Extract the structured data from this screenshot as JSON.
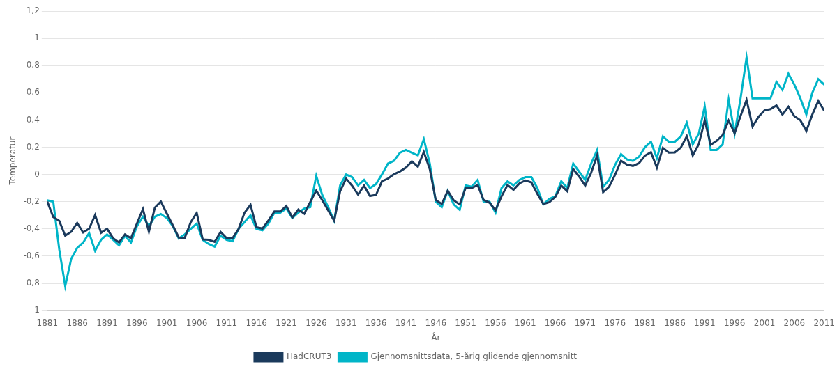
{
  "chart_data": {
    "type": "line",
    "xlabel": "År",
    "ylabel": "Temperatur",
    "xlim": [
      1881,
      2011
    ],
    "ylim": [
      -1.0,
      1.2
    ],
    "xticks": [
      1881,
      1886,
      1891,
      1896,
      1901,
      1906,
      1911,
      1916,
      1921,
      1926,
      1931,
      1936,
      1941,
      1946,
      1951,
      1956,
      1961,
      1966,
      1971,
      1976,
      1981,
      1986,
      1991,
      1996,
      2001,
      2006,
      2011
    ],
    "yticks": [
      -1,
      {
        "value": -0.8,
        "label": "-0,8"
      },
      {
        "value": -0.6,
        "label": "-0,6"
      },
      {
        "value": -0.4,
        "label": "-0,4"
      },
      {
        "value": -0.2,
        "label": "-0,2"
      },
      0,
      {
        "value": 0.2,
        "label": "0,2"
      },
      {
        "value": 0.4,
        "label": "0,4"
      },
      {
        "value": 0.6,
        "label": "0,6"
      },
      {
        "value": 0.8,
        "label": "0,8"
      },
      1,
      {
        "value": 1.2,
        "label": "1,2"
      }
    ],
    "grid": "y",
    "legend": "bottom",
    "x": [
      1881,
      1882,
      1883,
      1884,
      1885,
      1886,
      1887,
      1888,
      1889,
      1890,
      1891,
      1892,
      1893,
      1894,
      1895,
      1896,
      1897,
      1898,
      1899,
      1900,
      1901,
      1902,
      1903,
      1904,
      1905,
      1906,
      1907,
      1908,
      1909,
      1910,
      1911,
      1912,
      1913,
      1914,
      1915,
      1916,
      1917,
      1918,
      1919,
      1920,
      1921,
      1922,
      1923,
      1924,
      1925,
      1926,
      1927,
      1928,
      1929,
      1930,
      1931,
      1932,
      1933,
      1934,
      1935,
      1936,
      1937,
      1938,
      1939,
      1940,
      1941,
      1942,
      1943,
      1944,
      1945,
      1946,
      1947,
      1948,
      1949,
      1950,
      1951,
      1952,
      1953,
      1954,
      1955,
      1956,
      1957,
      1958,
      1959,
      1960,
      1961,
      1962,
      1963,
      1964,
      1965,
      1966,
      1967,
      1968,
      1969,
      1970,
      1971,
      1972,
      1973,
      1974,
      1975,
      1976,
      1977,
      1978,
      1979,
      1980,
      1981,
      1982,
      1983,
      1984,
      1985,
      1986,
      1987,
      1988,
      1989,
      1990,
      1991,
      1992,
      1993,
      1994,
      1995,
      1996,
      1997,
      1998,
      1999,
      2000,
      2001,
      2002,
      2003,
      2004,
      2005,
      2006,
      2007,
      2008,
      2009,
      2010,
      2011
    ],
    "series": [
      {
        "name": "HadCRUT3",
        "color": "#1b3a5c",
        "values": [
          -0.199,
          -0.313,
          -0.341,
          -0.449,
          -0.421,
          -0.356,
          -0.426,
          -0.398,
          -0.298,
          -0.428,
          -0.399,
          -0.468,
          -0.499,
          -0.44,
          -0.468,
          -0.36,
          -0.254,
          -0.421,
          -0.243,
          -0.199,
          -0.287,
          -0.374,
          -0.463,
          -0.465,
          -0.35,
          -0.282,
          -0.477,
          -0.48,
          -0.495,
          -0.422,
          -0.467,
          -0.467,
          -0.401,
          -0.281,
          -0.222,
          -0.388,
          -0.397,
          -0.338,
          -0.271,
          -0.271,
          -0.232,
          -0.316,
          -0.258,
          -0.288,
          -0.202,
          -0.118,
          -0.188,
          -0.264,
          -0.34,
          -0.122,
          -0.031,
          -0.082,
          -0.148,
          -0.082,
          -0.158,
          -0.15,
          -0.05,
          -0.03,
          0.002,
          0.022,
          0.05,
          0.096,
          0.057,
          0.166,
          0.039,
          -0.188,
          -0.217,
          -0.119,
          -0.19,
          -0.22,
          -0.098,
          -0.1,
          -0.077,
          -0.187,
          -0.208,
          -0.262,
          -0.161,
          -0.077,
          -0.113,
          -0.065,
          -0.044,
          -0.058,
          -0.142,
          -0.217,
          -0.203,
          -0.165,
          -0.082,
          -0.123,
          0.04,
          -0.017,
          -0.082,
          0.012,
          0.14,
          -0.13,
          -0.09,
          -0.003,
          0.101,
          0.072,
          0.063,
          0.083,
          0.138,
          0.163,
          0.05,
          0.195,
          0.161,
          0.162,
          0.197,
          0.281,
          0.14,
          0.222,
          0.398,
          0.218,
          0.247,
          0.29,
          0.396,
          0.302,
          0.43,
          0.548,
          0.352,
          0.423,
          0.471,
          0.48,
          0.507,
          0.44,
          0.497,
          0.428,
          0.398,
          0.32,
          0.44,
          0.54,
          0.468
        ]
      },
      {
        "name": "Gjennomsnittsdata, 5-årig glidende gjennomsnitt",
        "color": "#00b5c8",
        "values": [
          -0.19,
          -0.2,
          -0.55,
          -0.82,
          -0.62,
          -0.54,
          -0.5,
          -0.43,
          -0.56,
          -0.48,
          -0.44,
          -0.48,
          -0.52,
          -0.45,
          -0.5,
          -0.38,
          -0.31,
          -0.38,
          -0.31,
          -0.29,
          -0.32,
          -0.38,
          -0.47,
          -0.44,
          -0.4,
          -0.36,
          -0.48,
          -0.51,
          -0.53,
          -0.45,
          -0.48,
          -0.49,
          -0.4,
          -0.35,
          -0.3,
          -0.4,
          -0.41,
          -0.36,
          -0.28,
          -0.28,
          -0.25,
          -0.32,
          -0.28,
          -0.25,
          -0.24,
          -0.01,
          -0.15,
          -0.24,
          -0.34,
          -0.08,
          0.0,
          -0.02,
          -0.08,
          -0.04,
          -0.1,
          -0.07,
          0.0,
          0.08,
          0.1,
          0.16,
          0.18,
          0.16,
          0.14,
          0.26,
          0.08,
          -0.2,
          -0.24,
          -0.12,
          -0.22,
          -0.26,
          -0.08,
          -0.09,
          -0.04,
          -0.2,
          -0.2,
          -0.28,
          -0.1,
          -0.05,
          -0.08,
          -0.04,
          -0.02,
          -0.02,
          -0.1,
          -0.22,
          -0.18,
          -0.16,
          -0.05,
          -0.1,
          0.08,
          0.02,
          -0.04,
          0.08,
          0.18,
          -0.09,
          -0.04,
          0.07,
          0.15,
          0.11,
          0.1,
          0.13,
          0.2,
          0.24,
          0.12,
          0.28,
          0.24,
          0.24,
          0.28,
          0.38,
          0.22,
          0.3,
          0.5,
          0.18,
          0.18,
          0.22,
          0.55,
          0.3,
          0.56,
          0.86,
          0.56,
          0.56,
          0.56,
          0.56,
          0.68,
          0.62,
          0.74,
          0.66,
          0.56,
          0.44,
          0.6,
          0.7,
          0.66
        ]
      }
    ]
  }
}
